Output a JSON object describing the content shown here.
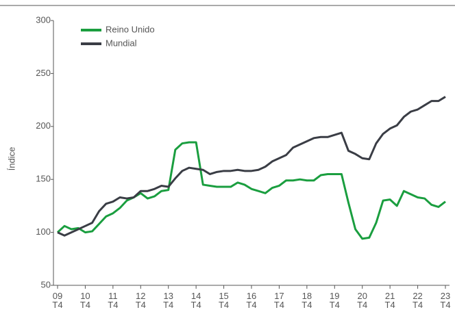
{
  "chart_data": {
    "type": "line",
    "y_label": "Índice",
    "categories": [
      "09\nT4",
      null,
      null,
      null,
      "10\nT4",
      null,
      null,
      null,
      "11\nT4",
      null,
      null,
      null,
      "12\nT4",
      null,
      null,
      null,
      "13\nT4",
      null,
      null,
      null,
      "14\nT4",
      null,
      null,
      null,
      "15\nT4",
      null,
      null,
      null,
      "16\nT4",
      null,
      null,
      null,
      "17\nT4",
      null,
      null,
      null,
      "18\nT4",
      null,
      null,
      null,
      "19\nT4",
      null,
      null,
      null,
      "20\nT4",
      null,
      null,
      null,
      "21\nT4",
      null,
      null,
      null,
      "22\nT4",
      null,
      null,
      null,
      "23\nT4"
    ],
    "series": [
      {
        "name": "Reino Unido",
        "color": "#1a9e3f",
        "values": [
          100,
          106,
          103,
          104,
          100,
          101,
          108,
          115,
          118,
          123,
          130,
          133,
          137,
          132,
          134,
          139,
          140,
          178,
          184,
          185,
          185,
          145,
          144,
          143,
          143,
          143,
          147,
          145,
          141,
          139,
          137,
          142,
          144,
          149,
          149,
          150,
          149,
          149,
          154,
          155,
          155,
          155,
          128,
          103,
          94,
          95,
          109,
          130,
          131,
          125,
          139,
          136,
          133,
          132,
          126,
          124,
          129
        ]
      },
      {
        "name": "Mundial",
        "color": "#3a3d45",
        "values": [
          100,
          97,
          100,
          103,
          106,
          109,
          120,
          127,
          129,
          133,
          132,
          133,
          139,
          139,
          141,
          144,
          143,
          151,
          158,
          161,
          160,
          159,
          155,
          157,
          158,
          158,
          159,
          158,
          158,
          159,
          162,
          167,
          170,
          173,
          180,
          183,
          186,
          189,
          190,
          190,
          192,
          194,
          177,
          174,
          170,
          169,
          184,
          193,
          198,
          201,
          209,
          214,
          216,
          220,
          224,
          224,
          228
        ]
      }
    ],
    "ylim": [
      50,
      300
    ],
    "yticks": [
      50,
      100,
      150,
      200,
      250,
      300
    ],
    "grid": false,
    "legend": "top-left"
  }
}
